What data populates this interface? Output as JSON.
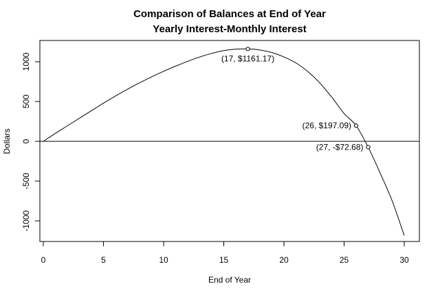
{
  "chart_data": {
    "type": "line",
    "title": "Comparison of Balances at End of Year",
    "subtitle": "Yearly Interest-Monthly Interest",
    "xlabel": "End of Year",
    "ylabel": "Dollars",
    "xlim": [
      0,
      30
    ],
    "ylim": [
      -1200,
      1200
    ],
    "x_ticks": [
      0,
      5,
      10,
      15,
      20,
      25,
      30
    ],
    "y_ticks": [
      -1000,
      -500,
      0,
      500,
      1000
    ],
    "x_tick_labels": [
      "0",
      "5",
      "10",
      "15",
      "20",
      "25",
      "30"
    ],
    "y_tick_labels": [
      "-1000",
      "-500",
      "0",
      "500",
      "1000"
    ],
    "grid": false,
    "reference_line_y": 0,
    "series": [
      {
        "x": [
          0,
          1,
          2,
          3,
          4,
          5,
          6,
          7,
          8,
          9,
          10,
          11,
          12,
          13,
          14,
          15,
          16,
          17,
          18,
          19,
          20,
          21,
          22,
          23,
          24,
          25,
          26,
          27,
          28,
          29,
          30
        ],
        "values": [
          0,
          100,
          195,
          290,
          385,
          480,
          570,
          655,
          735,
          810,
          880,
          945,
          1005,
          1060,
          1105,
          1140,
          1158,
          1161.17,
          1148,
          1115,
          1060,
          985,
          875,
          730,
          550,
          350,
          197.09,
          -72.68,
          -400,
          -750,
          -1185
        ]
      }
    ],
    "annotations": [
      {
        "label": "(17, $1161.17)",
        "x": 17,
        "y": 1161.17,
        "position": "below"
      },
      {
        "label": "(26, $197.09)",
        "x": 26,
        "y": 197.09,
        "position": "left"
      },
      {
        "label": "(27, -$72.68)",
        "x": 27,
        "y": -72.68,
        "position": "left"
      }
    ]
  }
}
